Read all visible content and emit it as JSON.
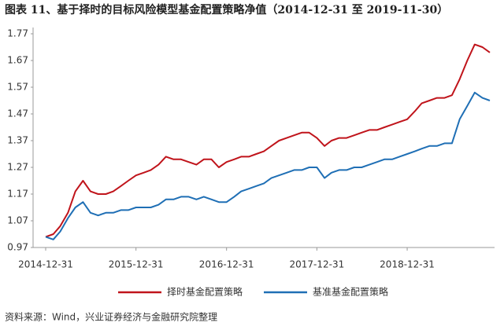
{
  "chart_data": {
    "type": "line",
    "title": "图表 11、基于择时的目标风险模型基金配置策略净值（2014-12-31 至 2019-11-30）",
    "source": "资料来源：Wind，兴业证券经济与金融研究院整理",
    "x": [
      "2014-12-31",
      "2015-01-31",
      "2015-02-28",
      "2015-03-31",
      "2015-04-30",
      "2015-05-31",
      "2015-06-30",
      "2015-07-31",
      "2015-08-31",
      "2015-09-30",
      "2015-10-31",
      "2015-11-30",
      "2015-12-31",
      "2016-01-31",
      "2016-02-29",
      "2016-03-31",
      "2016-04-30",
      "2016-05-31",
      "2016-06-30",
      "2016-07-31",
      "2016-08-31",
      "2016-09-30",
      "2016-10-31",
      "2016-11-30",
      "2016-12-31",
      "2017-01-31",
      "2017-02-28",
      "2017-03-31",
      "2017-04-30",
      "2017-05-31",
      "2017-06-30",
      "2017-07-31",
      "2017-08-31",
      "2017-09-30",
      "2017-10-31",
      "2017-11-30",
      "2017-12-31",
      "2018-01-31",
      "2018-02-28",
      "2018-03-31",
      "2018-04-30",
      "2018-05-31",
      "2018-06-30",
      "2018-07-31",
      "2018-08-31",
      "2018-09-30",
      "2018-10-31",
      "2018-11-30",
      "2018-12-31",
      "2019-01-31",
      "2019-02-28",
      "2019-03-31",
      "2019-04-30",
      "2019-05-31",
      "2019-06-30",
      "2019-07-31",
      "2019-08-31",
      "2019-09-30",
      "2019-10-31",
      "2019-11-30"
    ],
    "series": [
      {
        "name": "择时基金配置策略",
        "color": "#c0141b",
        "values": [
          1.01,
          1.02,
          1.05,
          1.1,
          1.18,
          1.22,
          1.18,
          1.17,
          1.17,
          1.18,
          1.2,
          1.22,
          1.24,
          1.25,
          1.26,
          1.28,
          1.31,
          1.3,
          1.3,
          1.29,
          1.28,
          1.3,
          1.3,
          1.27,
          1.29,
          1.3,
          1.31,
          1.31,
          1.32,
          1.33,
          1.35,
          1.37,
          1.38,
          1.39,
          1.4,
          1.4,
          1.38,
          1.35,
          1.37,
          1.38,
          1.38,
          1.39,
          1.4,
          1.41,
          1.41,
          1.42,
          1.43,
          1.44,
          1.45,
          1.48,
          1.51,
          1.52,
          1.53,
          1.53,
          1.54,
          1.6,
          1.67,
          1.73,
          1.72,
          1.7
        ]
      },
      {
        "name": "基准基金配置策略",
        "color": "#1f6fb5",
        "values": [
          1.01,
          1.0,
          1.03,
          1.08,
          1.12,
          1.14,
          1.1,
          1.09,
          1.1,
          1.1,
          1.11,
          1.11,
          1.12,
          1.12,
          1.12,
          1.13,
          1.15,
          1.15,
          1.16,
          1.16,
          1.15,
          1.16,
          1.15,
          1.14,
          1.14,
          1.16,
          1.18,
          1.19,
          1.2,
          1.21,
          1.23,
          1.24,
          1.25,
          1.26,
          1.26,
          1.27,
          1.27,
          1.23,
          1.25,
          1.26,
          1.26,
          1.27,
          1.27,
          1.28,
          1.29,
          1.3,
          1.3,
          1.31,
          1.32,
          1.33,
          1.34,
          1.35,
          1.35,
          1.36,
          1.36,
          1.45,
          1.5,
          1.55,
          1.53,
          1.52
        ]
      }
    ],
    "xlim": [
      "2014-12-31",
      "2019-11-30"
    ],
    "xticks": [
      "2014-12-31",
      "2015-12-31",
      "2016-12-31",
      "2017-12-31",
      "2018-12-31"
    ],
    "ylim": [
      0.97,
      1.77
    ],
    "yticks": [
      0.97,
      1.07,
      1.17,
      1.27,
      1.37,
      1.47,
      1.57,
      1.67,
      1.77
    ],
    "grid": false
  }
}
